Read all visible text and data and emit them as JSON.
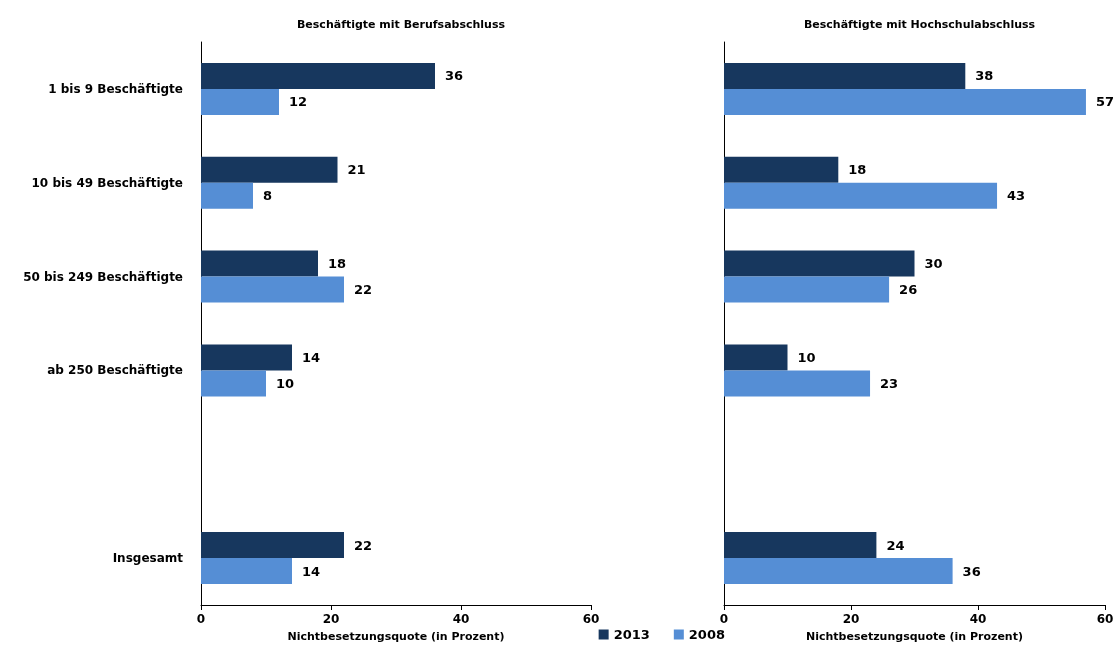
{
  "chart_data": [
    {
      "type": "bar",
      "orientation": "horizontal",
      "title": "Beschäftigte mit Berufsabschluss",
      "xlabel": "Nichtbesetzungsquote (in Prozent)",
      "categories": [
        "1 bis 9 Beschäftigte",
        "10 bis 49 Beschäftigte",
        "50 bis 249 Beschäftigte",
        "ab 250 Beschäftigte",
        null,
        "Insgesamt"
      ],
      "series": [
        {
          "name": "2013",
          "color": "#17375e",
          "values": [
            36,
            21,
            18,
            14,
            null,
            22
          ]
        },
        {
          "name": "2008",
          "color": "#558ed5",
          "values": [
            12,
            8,
            22,
            10,
            null,
            14
          ]
        }
      ],
      "xlim": [
        0,
        60
      ],
      "xticks": [
        0,
        20,
        40,
        60
      ],
      "data_labels": true,
      "grid": false,
      "legend": "bottom right"
    },
    {
      "type": "bar",
      "orientation": "horizontal",
      "title": "Beschäftigte mit Hochschulabschluss",
      "xlabel": "Nichtbesetzungsquote (in Prozent)",
      "categories": [
        null,
        null,
        null,
        null,
        null,
        null
      ],
      "series": [
        {
          "color": "#17375e",
          "values": [
            38,
            18,
            30,
            10,
            null,
            24
          ]
        },
        {
          "color": "#558ed5",
          "values": [
            57,
            43,
            26,
            23,
            null,
            36
          ]
        }
      ],
      "xlim": [
        0,
        60
      ],
      "xticks": [
        0,
        20,
        40,
        60
      ],
      "data_labels": true,
      "grid": false
    }
  ]
}
